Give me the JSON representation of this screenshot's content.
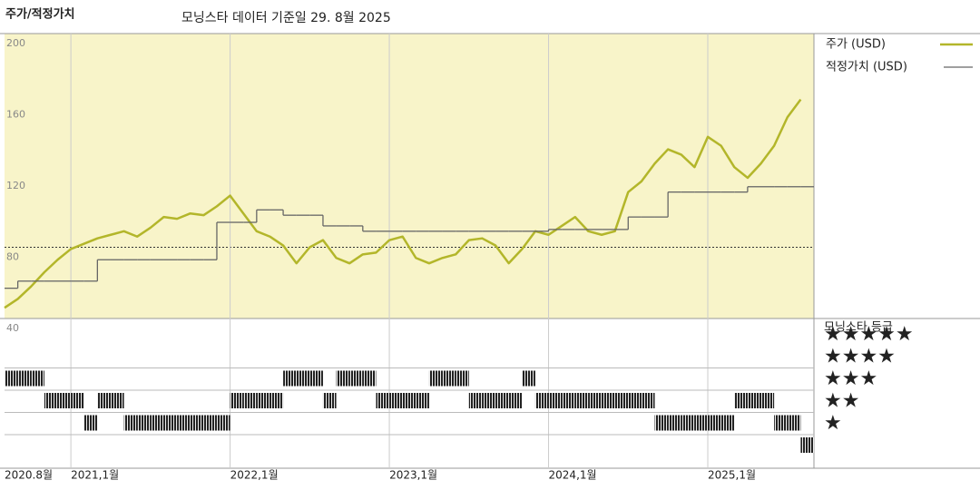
{
  "chart_data": {
    "type": "line",
    "title": "주가/적정가치",
    "subtitle": "모닝스타 데이터 기준일 29. 8월 2025",
    "x": [
      "2020-08",
      "2020-09",
      "2020-10",
      "2020-11",
      "2020-12",
      "2021-01",
      "2021-02",
      "2021-03",
      "2021-04",
      "2021-05",
      "2021-06",
      "2021-07",
      "2021-08",
      "2021-09",
      "2021-10",
      "2021-11",
      "2021-12",
      "2022-01",
      "2022-02",
      "2022-03",
      "2022-04",
      "2022-05",
      "2022-06",
      "2022-07",
      "2022-08",
      "2022-09",
      "2022-10",
      "2022-11",
      "2022-12",
      "2023-01",
      "2023-02",
      "2023-03",
      "2023-04",
      "2023-05",
      "2023-06",
      "2023-07",
      "2023-08",
      "2023-09",
      "2023-10",
      "2023-11",
      "2023-12",
      "2024-01",
      "2024-02",
      "2024-03",
      "2024-04",
      "2024-05",
      "2024-06",
      "2024-07",
      "2024-08",
      "2024-09",
      "2024-10",
      "2024-11",
      "2024-12",
      "2025-01",
      "2025-02",
      "2025-03",
      "2025-04",
      "2025-05",
      "2025-06",
      "2025-07",
      "2025-08"
    ],
    "series": [
      {
        "name": "주가 (USD)",
        "color": "#b3b62a",
        "values": [
          46,
          51,
          58,
          66,
          73,
          79,
          82,
          85,
          87,
          89,
          86,
          91,
          97,
          96,
          99,
          98,
          103,
          109,
          99,
          89,
          86,
          81,
          71,
          80,
          84,
          74,
          71,
          76,
          77,
          84,
          86,
          74,
          71,
          74,
          76,
          84,
          85,
          81,
          71,
          79,
          89,
          87,
          92,
          97,
          89,
          87,
          89,
          111,
          117,
          127,
          135,
          132,
          125,
          142,
          137,
          125,
          119,
          127,
          137,
          153,
          163
        ]
      },
      {
        "name": "적정가치 (USD)",
        "color": "#666666",
        "values": [
          57,
          61,
          61,
          61,
          61,
          61,
          61,
          73,
          73,
          73,
          73,
          73,
          73,
          73,
          73,
          73,
          94,
          94,
          94,
          101,
          101,
          98,
          98,
          98,
          92,
          92,
          92,
          89,
          89,
          89,
          89,
          89,
          89,
          89,
          89,
          89,
          89,
          89,
          89,
          89,
          89,
          90,
          90,
          90,
          90,
          90,
          90,
          97,
          97,
          97,
          111,
          111,
          111,
          111,
          111,
          111,
          114,
          114,
          114,
          114,
          114
        ]
      }
    ],
    "xlim": [
      "2020-08",
      "2025-09"
    ],
    "xticks": [
      {
        "value": "2020-08",
        "label": "2020.8월"
      },
      {
        "value": "2021-01",
        "label": "2021,1월"
      },
      {
        "value": "2022-01",
        "label": "2022,1월"
      },
      {
        "value": "2023-01",
        "label": "2023,1월"
      },
      {
        "value": "2024-01",
        "label": "2024,1월"
      },
      {
        "value": "2025-01",
        "label": "2025,1월"
      }
    ],
    "ylim": [
      40,
      200
    ],
    "yticks": [
      40,
      80,
      120,
      160,
      200
    ],
    "reference_line": 80,
    "rating_title": "모닝스타 등급",
    "rating_levels": [
      {
        "value": 5,
        "label": "★★★★★"
      },
      {
        "value": 4,
        "label": "★★★★"
      },
      {
        "value": 3,
        "label": "★★★"
      },
      {
        "value": 2,
        "label": "★★"
      },
      {
        "value": 1,
        "label": "★"
      }
    ],
    "ratings": [
      4,
      4,
      4,
      3,
      3,
      3,
      2,
      3,
      3,
      2,
      2,
      2,
      2,
      2,
      2,
      2,
      2,
      3,
      3,
      3,
      3,
      4,
      4,
      4,
      3,
      4,
      4,
      4,
      3,
      3,
      3,
      3,
      4,
      4,
      4,
      3,
      3,
      3,
      3,
      4,
      3,
      3,
      3,
      3,
      3,
      3,
      3,
      3,
      3,
      2,
      2,
      2,
      2,
      2,
      2,
      3,
      3,
      3,
      2,
      2,
      1
    ]
  }
}
